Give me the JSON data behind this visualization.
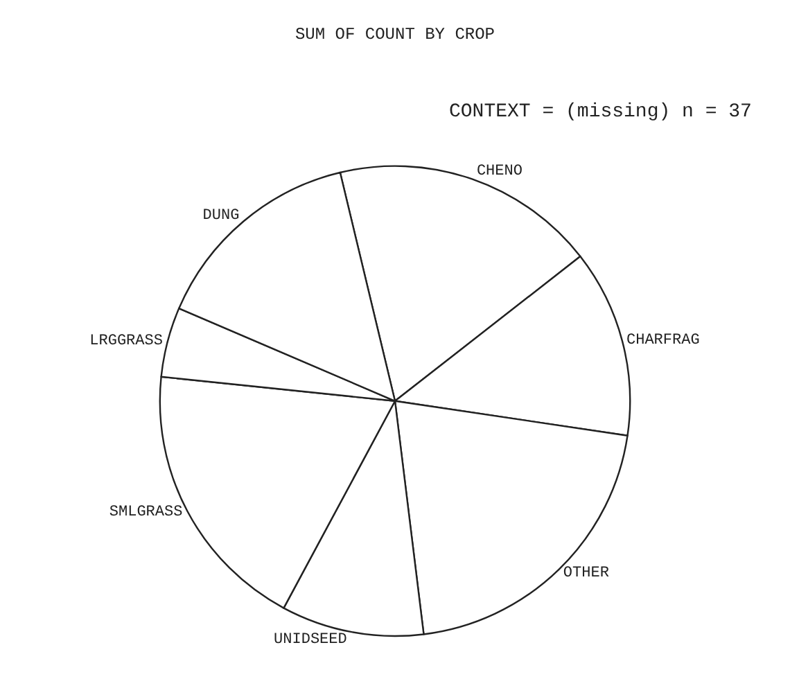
{
  "chart_data": {
    "type": "pie",
    "title": "SUM OF COUNT BY CROP",
    "annotations": [
      "CONTEXT = (missing) n = 37"
    ],
    "categories": [
      "CHENO",
      "CHARFRAG",
      "OTHER",
      "UNIDSEED",
      "SMLGRASS",
      "LRGGRASS",
      "DUNG"
    ],
    "values": [
      18.2,
      12.9,
      20.7,
      9.8,
      18.8,
      4.8,
      14.8
    ],
    "colors": [
      "#ffffff",
      "#ffffff",
      "#ffffff",
      "#ffffff",
      "#ffffff",
      "#ffffff",
      "#ffffff"
    ],
    "legend": false
  }
}
